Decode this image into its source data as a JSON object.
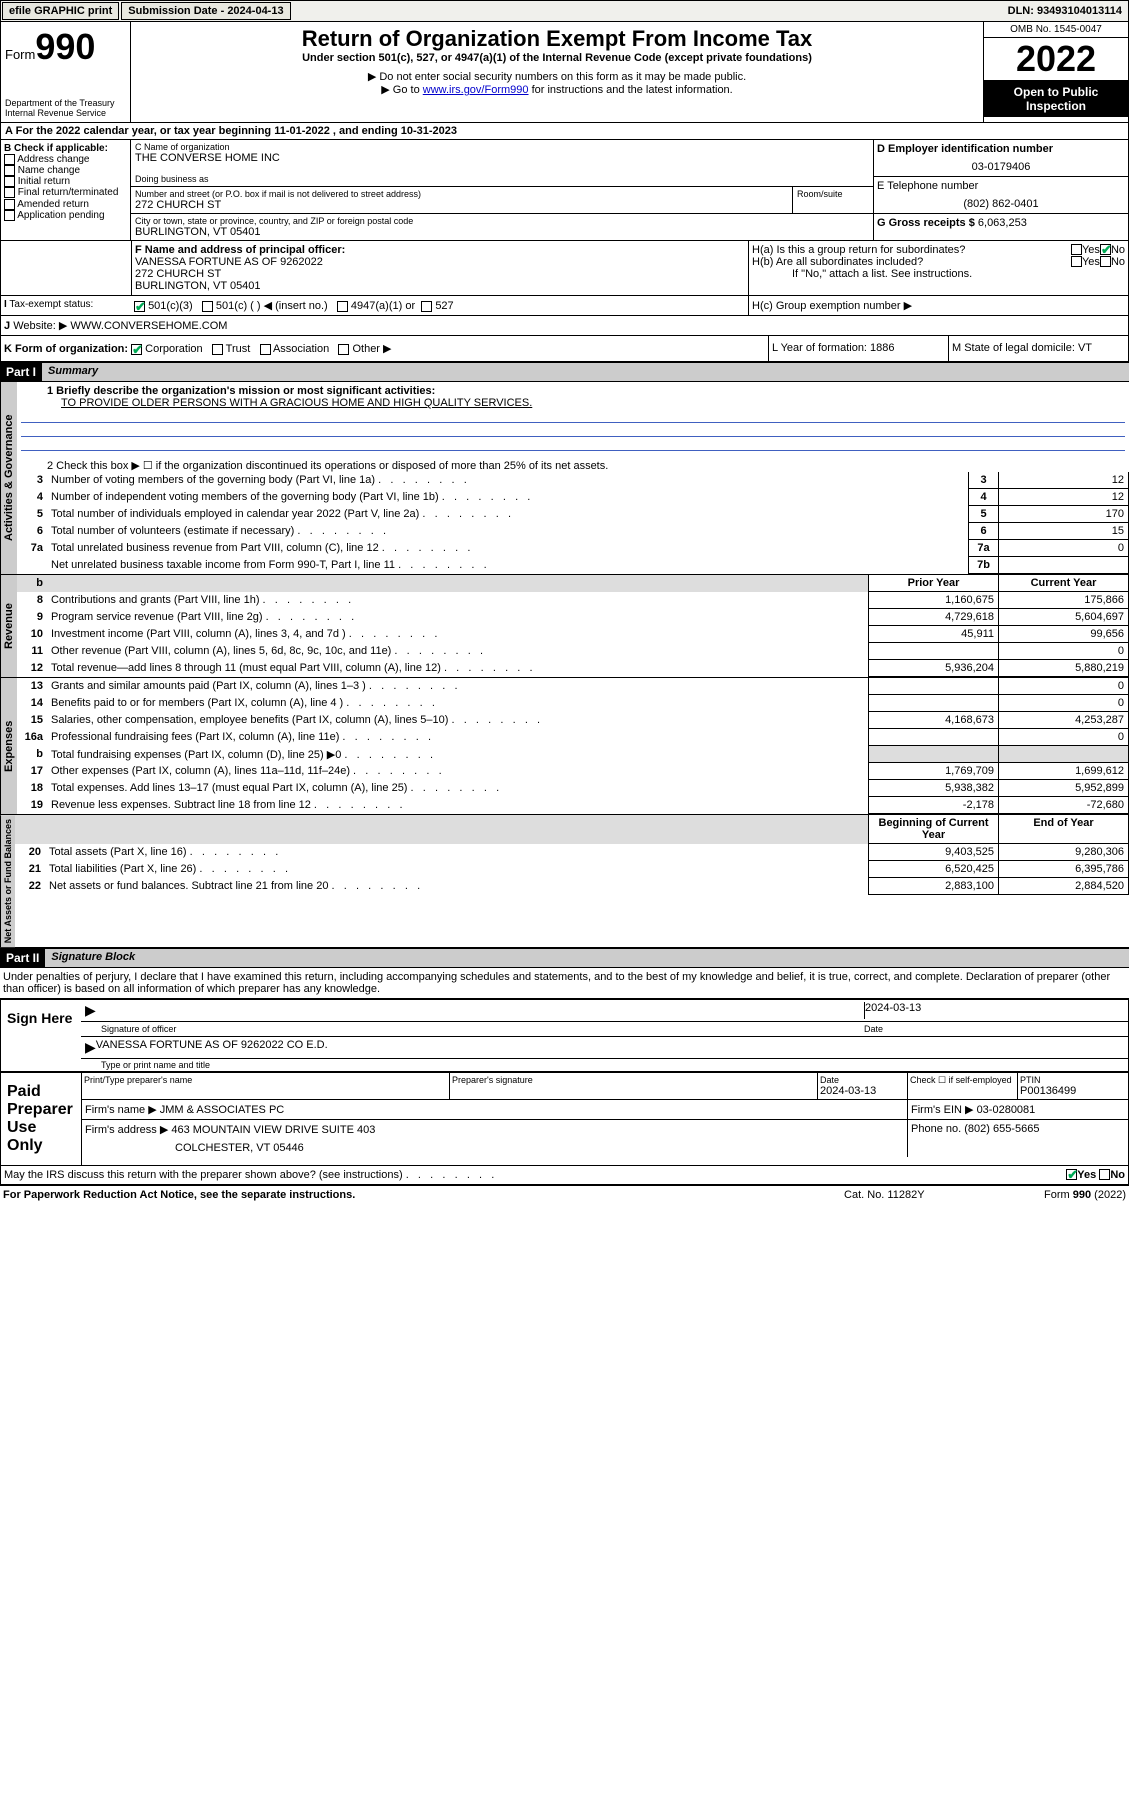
{
  "topbar": {
    "efile": "efile GRAPHIC print",
    "submission_label": "Submission Date - 2024-04-13",
    "dln_label": "DLN: 93493104013114"
  },
  "header": {
    "form_label": "Form",
    "form_num": "990",
    "dept": "Department of the Treasury",
    "irs": "Internal Revenue Service",
    "title": "Return of Organization Exempt From Income Tax",
    "subtitle": "Under section 501(c), 527, or 4947(a)(1) of the Internal Revenue Code (except private foundations)",
    "note1": "▶ Do not enter social security numbers on this form as it may be made public.",
    "note2_pre": "▶ Go to ",
    "note2_link": "www.irs.gov/Form990",
    "note2_post": " for instructions and the latest information.",
    "omb": "OMB No. 1545-0047",
    "year": "2022",
    "inspection": "Open to Public Inspection"
  },
  "line_a": "For the 2022 calendar year, or tax year beginning 11-01-2022     , and ending 10-31-2023",
  "section_b": {
    "label": "B Check if applicable:",
    "opts": [
      "Address change",
      "Name change",
      "Initial return",
      "Final return/terminated",
      "Amended return",
      "Application pending"
    ]
  },
  "section_c": {
    "name_label": "C Name of organization",
    "name": "THE CONVERSE HOME INC",
    "dba_label": "Doing business as",
    "addr_label": "Number and street (or P.O. box if mail is not delivered to street address)",
    "room_label": "Room/suite",
    "addr": "272 CHURCH ST",
    "city_label": "City or town, state or province, country, and ZIP or foreign postal code",
    "city": "BURLINGTON, VT  05401"
  },
  "section_d": {
    "label": "D Employer identification number",
    "value": "03-0179406"
  },
  "section_e": {
    "label": "E Telephone number",
    "value": "(802) 862-0401"
  },
  "section_g": {
    "label": "G Gross receipts $",
    "value": "6,063,253"
  },
  "section_f": {
    "label": "F Name and address of principal officer:",
    "name": "VANESSA FORTUNE AS OF 9262022",
    "addr1": "272 CHURCH ST",
    "addr2": "BURLINGTON, VT  05401"
  },
  "section_h": {
    "ha": "H(a)  Is this a group return for subordinates?",
    "hb": "H(b)  Are all subordinates included?",
    "hb_note": "If \"No,\" attach a list. See instructions.",
    "hc": "H(c)  Group exemption number ▶"
  },
  "section_i": {
    "label": "Tax-exempt status:",
    "opt1": "501(c)(3)",
    "opt2": "501(c) (  ) ◀ (insert no.)",
    "opt3": "4947(a)(1) or",
    "opt4": "527"
  },
  "section_j": {
    "label": "Website: ▶",
    "value": "WWW.CONVERSEHOME.COM"
  },
  "section_k": {
    "label": "K Form of organization:",
    "opts": [
      "Corporation",
      "Trust",
      "Association",
      "Other ▶"
    ]
  },
  "section_l": {
    "label": "L Year of formation: 1886"
  },
  "section_m": {
    "label": "M State of legal domicile: VT"
  },
  "part1": {
    "hdr": "Part I",
    "title": "Summary",
    "line1_label": "1  Briefly describe the organization's mission or most significant activities:",
    "line1_text": "TO PROVIDE OLDER PERSONS WITH A GRACIOUS HOME AND HIGH QUALITY SERVICES.",
    "line2": "2   Check this box ▶ ☐  if the organization discontinued its operations or disposed of more than 25% of its net assets.",
    "governance_rows": [
      {
        "n": "3",
        "label": "Number of voting members of the governing body (Part VI, line 1a)",
        "box": "3",
        "val": "12"
      },
      {
        "n": "4",
        "label": "Number of independent voting members of the governing body (Part VI, line 1b)",
        "box": "4",
        "val": "12"
      },
      {
        "n": "5",
        "label": "Total number of individuals employed in calendar year 2022 (Part V, line 2a)",
        "box": "5",
        "val": "170"
      },
      {
        "n": "6",
        "label": "Total number of volunteers (estimate if necessary)",
        "box": "6",
        "val": "15"
      },
      {
        "n": "7a",
        "label": "Total unrelated business revenue from Part VIII, column (C), line 12",
        "box": "7a",
        "val": "0"
      },
      {
        "n": "",
        "label": "Net unrelated business taxable income from Form 990-T, Part I, line 11",
        "box": "7b",
        "val": ""
      }
    ],
    "col_prior": "Prior Year",
    "col_current": "Current Year",
    "revenue_rows": [
      {
        "n": "8",
        "label": "Contributions and grants (Part VIII, line 1h)",
        "prior": "1,160,675",
        "cur": "175,866"
      },
      {
        "n": "9",
        "label": "Program service revenue (Part VIII, line 2g)",
        "prior": "4,729,618",
        "cur": "5,604,697"
      },
      {
        "n": "10",
        "label": "Investment income (Part VIII, column (A), lines 3, 4, and 7d )",
        "prior": "45,911",
        "cur": "99,656"
      },
      {
        "n": "11",
        "label": "Other revenue (Part VIII, column (A), lines 5, 6d, 8c, 9c, 10c, and 11e)",
        "prior": "",
        "cur": "0"
      },
      {
        "n": "12",
        "label": "Total revenue—add lines 8 through 11 (must equal Part VIII, column (A), line 12)",
        "prior": "5,936,204",
        "cur": "5,880,219"
      }
    ],
    "expense_rows": [
      {
        "n": "13",
        "label": "Grants and similar amounts paid (Part IX, column (A), lines 1–3 )",
        "prior": "",
        "cur": "0"
      },
      {
        "n": "14",
        "label": "Benefits paid to or for members (Part IX, column (A), line 4 )",
        "prior": "",
        "cur": "0"
      },
      {
        "n": "15",
        "label": "Salaries, other compensation, employee benefits (Part IX, column (A), lines 5–10)",
        "prior": "4,168,673",
        "cur": "4,253,287"
      },
      {
        "n": "16a",
        "label": "Professional fundraising fees (Part IX, column (A), line 11e)",
        "prior": "",
        "cur": "0"
      },
      {
        "n": "b",
        "label": "Total fundraising expenses (Part IX, column (D), line 25) ▶0",
        "prior": "shade",
        "cur": "shade"
      },
      {
        "n": "17",
        "label": "Other expenses (Part IX, column (A), lines 11a–11d, 11f–24e)",
        "prior": "1,769,709",
        "cur": "1,699,612"
      },
      {
        "n": "18",
        "label": "Total expenses. Add lines 13–17 (must equal Part IX, column (A), line 25)",
        "prior": "5,938,382",
        "cur": "5,952,899"
      },
      {
        "n": "19",
        "label": "Revenue less expenses. Subtract line 18 from line 12",
        "prior": "-2,178",
        "cur": "-72,680"
      }
    ],
    "col_begin": "Beginning of Current Year",
    "col_end": "End of Year",
    "net_rows": [
      {
        "n": "20",
        "label": "Total assets (Part X, line 16)",
        "prior": "9,403,525",
        "cur": "9,280,306"
      },
      {
        "n": "21",
        "label": "Total liabilities (Part X, line 26)",
        "prior": "6,520,425",
        "cur": "6,395,786"
      },
      {
        "n": "22",
        "label": "Net assets or fund balances. Subtract line 21 from line 20",
        "prior": "2,883,100",
        "cur": "2,884,520"
      }
    ],
    "vtab_gov": "Activities & Governance",
    "vtab_rev": "Revenue",
    "vtab_exp": "Expenses",
    "vtab_net": "Net Assets or Fund Balances"
  },
  "part2": {
    "hdr": "Part II",
    "title": "Signature Block",
    "penalties": "Under penalties of perjury, I declare that I have examined this return, including accompanying schedules and statements, and to the best of my knowledge and belief, it is true, correct, and complete. Declaration of preparer (other than officer) is based on all information of which preparer has any knowledge.",
    "sign_here": "Sign Here",
    "sig_officer": "Signature of officer",
    "sig_date": "Date",
    "sig_date_val": "2024-03-13",
    "sig_name": "VANESSA FORTUNE AS OF 9262022  CO E.D.",
    "sig_name_label": "Type or print name and title",
    "paid": "Paid Preparer Use Only",
    "prep_name_label": "Print/Type preparer's name",
    "prep_sig_label": "Preparer's signature",
    "prep_date_label": "Date",
    "prep_date": "2024-03-13",
    "prep_check": "Check ☐ if self-employed",
    "ptin_label": "PTIN",
    "ptin": "P00136499",
    "firm_name_label": "Firm's name     ▶",
    "firm_name": "JMM & ASSOCIATES PC",
    "firm_ein_label": "Firm's EIN ▶",
    "firm_ein": "03-0280081",
    "firm_addr_label": "Firm's address ▶",
    "firm_addr1": "463 MOUNTAIN VIEW DRIVE SUITE 403",
    "firm_addr2": "COLCHESTER, VT  05446",
    "firm_phone_label": "Phone no.",
    "firm_phone": "(802) 655-5665",
    "discuss": "May the IRS discuss this return with the preparer shown above? (see instructions)",
    "yes": "Yes",
    "no": "No"
  },
  "footer": {
    "pra": "For Paperwork Reduction Act Notice, see the separate instructions.",
    "cat": "Cat. No. 11282Y",
    "form": "Form 990 (2022)"
  }
}
